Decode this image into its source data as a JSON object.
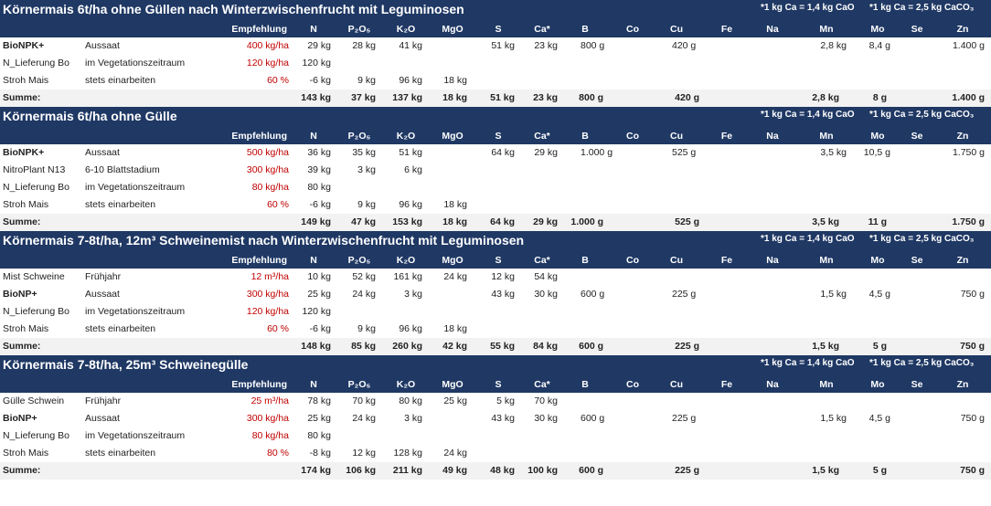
{
  "notes": {
    "ca_cao": "*1 kg Ca = 1,4 kg CaO",
    "ca_caco3": "*1 kg Ca = 2,5 kg CaCO₃"
  },
  "columns": {
    "empfehlung": "Empfehlung",
    "n": "N",
    "p": "P₂O₅",
    "k": "K₂O",
    "mgo": "MgO",
    "s": "S",
    "ca": "Ca*",
    "b": "B",
    "co": "Co",
    "cu": "Cu",
    "fe": "Fe",
    "na": "Na",
    "mn": "Mn",
    "mo": "Mo",
    "se": "Se",
    "zn": "Zn"
  },
  "sections": [
    {
      "title": "Körnermais 6t/ha ohne Güllen nach Winterzwischenfrucht mit Leguminosen",
      "rows": [
        {
          "name": "BioNPK+",
          "bold": true,
          "timing": "Aussaat",
          "emp": "400 kg/ha",
          "n": "29 kg",
          "p": "28 kg",
          "k": "41 kg",
          "mgo": "",
          "s": "51 kg",
          "ca": "23 kg",
          "b": "800 g",
          "co": "",
          "cu": "420 g",
          "fe": "",
          "na": "",
          "mn": "2,8 kg",
          "mo": "8,4 g",
          "se": "",
          "zn": "1.400 g"
        },
        {
          "name": "N_Lieferung Bo",
          "bold": false,
          "timing": "im Vegetationszeitraum",
          "emp": "120 kg/ha",
          "n": "120 kg",
          "p": "",
          "k": "",
          "mgo": "",
          "s": "",
          "ca": "",
          "b": "",
          "co": "",
          "cu": "",
          "fe": "",
          "na": "",
          "mn": "",
          "mo": "",
          "se": "",
          "zn": ""
        },
        {
          "name": "Stroh Mais",
          "bold": false,
          "timing": "stets einarbeiten",
          "emp": "60 %",
          "n": "-6 kg",
          "p": "9 kg",
          "k": "96 kg",
          "mgo": "18 kg",
          "s": "",
          "ca": "",
          "b": "",
          "co": "",
          "cu": "",
          "fe": "",
          "na": "",
          "mn": "",
          "mo": "",
          "se": "",
          "zn": ""
        }
      ],
      "sum": {
        "label": "Summe:",
        "n": "143 kg",
        "p": "37 kg",
        "k": "137 kg",
        "mgo": "18 kg",
        "s": "51 kg",
        "ca": "23 kg",
        "b": "800 g",
        "cu": "420 g",
        "mn": "2,8 kg",
        "mo": "8 g",
        "zn": "1.400 g"
      }
    },
    {
      "title": "Körnermais 6t/ha ohne Gülle",
      "rows": [
        {
          "name": "BioNPK+",
          "bold": true,
          "timing": "Aussaat",
          "emp": "500 kg/ha",
          "n": "36 kg",
          "p": "35 kg",
          "k": "51 kg",
          "mgo": "",
          "s": "64 kg",
          "ca": "29 kg",
          "b": "1.000 g",
          "co": "",
          "cu": "525 g",
          "fe": "",
          "na": "",
          "mn": "3,5 kg",
          "mo": "10,5 g",
          "se": "",
          "zn": "1.750 g"
        },
        {
          "name": "NitroPlant N13",
          "bold": false,
          "timing": "6-10 Blattstadium",
          "emp": "300 kg/ha",
          "n": "39 kg",
          "p": "3 kg",
          "k": "6 kg",
          "mgo": "",
          "s": "",
          "ca": "",
          "b": "",
          "co": "",
          "cu": "",
          "fe": "",
          "na": "",
          "mn": "",
          "mo": "",
          "se": "",
          "zn": ""
        },
        {
          "name": "N_Lieferung Bo",
          "bold": false,
          "timing": "im Vegetationszeitraum",
          "emp": "80 kg/ha",
          "n": "80 kg",
          "p": "",
          "k": "",
          "mgo": "",
          "s": "",
          "ca": "",
          "b": "",
          "co": "",
          "cu": "",
          "fe": "",
          "na": "",
          "mn": "",
          "mo": "",
          "se": "",
          "zn": ""
        },
        {
          "name": "Stroh Mais",
          "bold": false,
          "timing": "stets einarbeiten",
          "emp": "60 %",
          "n": "-6 kg",
          "p": "9 kg",
          "k": "96 kg",
          "mgo": "18 kg",
          "s": "",
          "ca": "",
          "b": "",
          "co": "",
          "cu": "",
          "fe": "",
          "na": "",
          "mn": "",
          "mo": "",
          "se": "",
          "zn": ""
        }
      ],
      "sum": {
        "label": "Summe:",
        "n": "149 kg",
        "p": "47 kg",
        "k": "153 kg",
        "mgo": "18 kg",
        "s": "64 kg",
        "ca": "29 kg",
        "b": "1.000 g",
        "cu": "525 g",
        "mn": "3,5 kg",
        "mo": "11 g",
        "zn": "1.750 g"
      }
    },
    {
      "title": "Körnermais 7-8t/ha, 12m³ Schweinemist nach Winterzwischenfrucht mit Leguminosen",
      "rows": [
        {
          "name": "Mist Schweine",
          "bold": false,
          "timing": "Frühjahr",
          "emp": "12 m³/ha",
          "n": "10 kg",
          "p": "52 kg",
          "k": "161 kg",
          "mgo": "24 kg",
          "s": "12 kg",
          "ca": "54 kg",
          "b": "",
          "co": "",
          "cu": "",
          "fe": "",
          "na": "",
          "mn": "",
          "mo": "",
          "se": "",
          "zn": ""
        },
        {
          "name": "BioNP+",
          "bold": true,
          "timing": "Aussaat",
          "emp": "300 kg/ha",
          "n": "25 kg",
          "p": "24 kg",
          "k": "3 kg",
          "mgo": "",
          "s": "43 kg",
          "ca": "30 kg",
          "b": "600 g",
          "co": "",
          "cu": "225 g",
          "fe": "",
          "na": "",
          "mn": "1,5 kg",
          "mo": "4,5 g",
          "se": "",
          "zn": "750 g"
        },
        {
          "name": "N_Lieferung Bo",
          "bold": false,
          "timing": "im Vegetationszeitraum",
          "emp": "120 kg/ha",
          "n": "120 kg",
          "p": "",
          "k": "",
          "mgo": "",
          "s": "",
          "ca": "",
          "b": "",
          "co": "",
          "cu": "",
          "fe": "",
          "na": "",
          "mn": "",
          "mo": "",
          "se": "",
          "zn": ""
        },
        {
          "name": "Stroh Mais",
          "bold": false,
          "timing": "stets einarbeiten",
          "emp": "60 %",
          "n": "-6 kg",
          "p": "9 kg",
          "k": "96 kg",
          "mgo": "18 kg",
          "s": "",
          "ca": "",
          "b": "",
          "co": "",
          "cu": "",
          "fe": "",
          "na": "",
          "mn": "",
          "mo": "",
          "se": "",
          "zn": ""
        }
      ],
      "sum": {
        "label": "Summe:",
        "n": "148 kg",
        "p": "85 kg",
        "k": "260 kg",
        "mgo": "42 kg",
        "s": "55 kg",
        "ca": "84 kg",
        "b": "600 g",
        "cu": "225 g",
        "mn": "1,5 kg",
        "mo": "5 g",
        "zn": "750 g"
      }
    },
    {
      "title": "Körnermais 7-8t/ha, 25m³ Schweinegülle",
      "rows": [
        {
          "name": "Gülle Schwein",
          "bold": false,
          "timing": "Frühjahr",
          "emp": "25 m³/ha",
          "n": "78 kg",
          "p": "70 kg",
          "k": "80 kg",
          "mgo": "25 kg",
          "s": "5 kg",
          "ca": "70 kg",
          "b": "",
          "co": "",
          "cu": "",
          "fe": "",
          "na": "",
          "mn": "",
          "mo": "",
          "se": "",
          "zn": ""
        },
        {
          "name": "BioNP+",
          "bold": true,
          "timing": "Aussaat",
          "emp": "300 kg/ha",
          "n": "25 kg",
          "p": "24 kg",
          "k": "3 kg",
          "mgo": "",
          "s": "43 kg",
          "ca": "30 kg",
          "b": "600 g",
          "co": "",
          "cu": "225 g",
          "fe": "",
          "na": "",
          "mn": "1,5 kg",
          "mo": "4,5 g",
          "se": "",
          "zn": "750 g"
        },
        {
          "name": "N_Lieferung Bo",
          "bold": false,
          "timing": "im Vegetationszeitraum",
          "emp": "80 kg/ha",
          "n": "80 kg",
          "p": "",
          "k": "",
          "mgo": "",
          "s": "",
          "ca": "",
          "b": "",
          "co": "",
          "cu": "",
          "fe": "",
          "na": "",
          "mn": "",
          "mo": "",
          "se": "",
          "zn": ""
        },
        {
          "name": "Stroh Mais",
          "bold": false,
          "timing": "stets einarbeiten",
          "emp": "80 %",
          "n": "-8 kg",
          "p": "12 kg",
          "k": "128 kg",
          "mgo": "24 kg",
          "s": "",
          "ca": "",
          "b": "",
          "co": "",
          "cu": "",
          "fe": "",
          "na": "",
          "mn": "",
          "mo": "",
          "se": "",
          "zn": ""
        }
      ],
      "sum": {
        "label": "Summe:",
        "n": "174 kg",
        "p": "106 kg",
        "k": "211 kg",
        "mgo": "49 kg",
        "s": "48 kg",
        "ca": "100 kg",
        "b": "600 g",
        "cu": "225 g",
        "mn": "1,5 kg",
        "mo": "5 g",
        "zn": "750 g"
      }
    }
  ]
}
